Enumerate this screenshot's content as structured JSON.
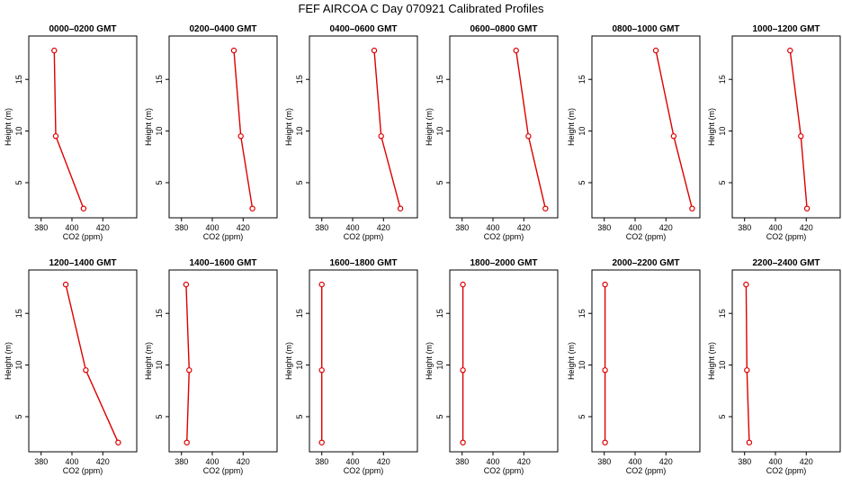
{
  "chart_data": {
    "type": "line",
    "title": "FEF AIRCOA C  Day 070921  Calibrated Profiles",
    "xlabel": "CO2 (ppm)",
    "ylabel": "Height (m)",
    "xlim": [
      372,
      442
    ],
    "ylim": [
      1.6,
      19.2
    ],
    "x_ticks": [
      380,
      400,
      420
    ],
    "y_ticks": [
      5,
      10,
      15
    ],
    "heights": [
      2.5,
      9.5,
      17.8
    ],
    "line_color": "#dd0000",
    "panels": [
      {
        "title": "0000–0200 GMT",
        "co2": [
          407.5,
          389.5,
          388.5
        ]
      },
      {
        "title": "0200–0400 GMT",
        "co2": [
          426.0,
          418.5,
          414.0
        ]
      },
      {
        "title": "0400–0600 GMT",
        "co2": [
          431.0,
          418.5,
          414.0
        ]
      },
      {
        "title": "0600–0800 GMT",
        "co2": [
          434.0,
          423.0,
          415.0
        ]
      },
      {
        "title": "0800–1000 GMT",
        "co2": [
          437.0,
          425.0,
          413.5
        ]
      },
      {
        "title": "1000–1200 GMT",
        "co2": [
          420.5,
          416.5,
          409.5
        ]
      },
      {
        "title": "1200–1400 GMT",
        "co2": [
          430.0,
          409.0,
          396.0
        ]
      },
      {
        "title": "1400–1600 GMT",
        "co2": [
          383.5,
          385.0,
          383.0
        ]
      },
      {
        "title": "1600–1800 GMT",
        "co2": [
          380.0,
          380.0,
          380.0
        ]
      },
      {
        "title": "1800–2000 GMT",
        "co2": [
          380.5,
          380.5,
          380.5
        ]
      },
      {
        "title": "2000–2200 GMT",
        "co2": [
          380.5,
          380.5,
          380.5
        ]
      },
      {
        "title": "2200–2400 GMT",
        "co2": [
          383.0,
          381.5,
          381.0
        ]
      }
    ]
  }
}
